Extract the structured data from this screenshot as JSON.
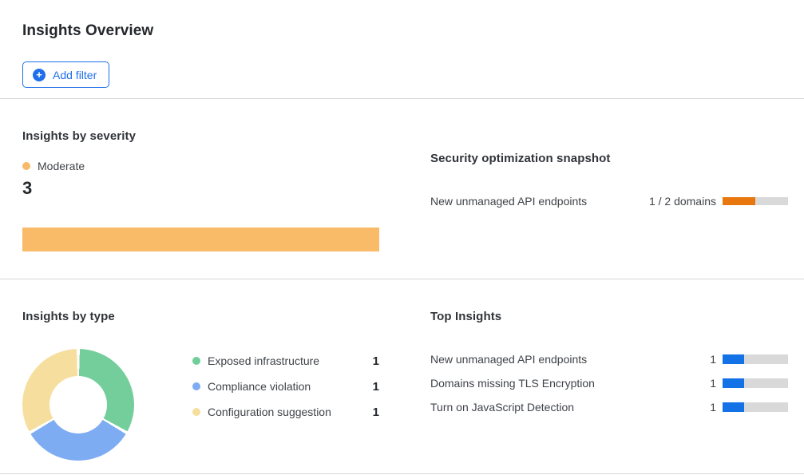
{
  "page": {
    "title": "Insights Overview"
  },
  "toolbar": {
    "add_filter_label": "Add filter",
    "plus_glyph": "+"
  },
  "colors": {
    "accent_blue": "#1f6feb",
    "severity_orange": "#FABB69",
    "snapshot_orange": "#E8770D",
    "insight_blue": "#1373E6",
    "track_gray": "#D9D9D9",
    "donut_green": "#74CE9B",
    "donut_blue": "#7DACF3",
    "donut_yellow": "#F6DF9E"
  },
  "severity": {
    "heading": "Insights by severity",
    "legend": {
      "label": "Moderate",
      "color": "#F6BA68"
    },
    "count": "3",
    "bar": {
      "value": 3,
      "max": 3,
      "color": "#FABB69"
    }
  },
  "snapshot": {
    "heading": "Security optimization snapshot",
    "rows": [
      {
        "label": "New unmanaged API endpoints",
        "value_label": "1 / 2 domains",
        "progress": {
          "value": 1,
          "max": 2,
          "color": "#E8770D"
        }
      }
    ]
  },
  "types": {
    "heading": "Insights by type",
    "legend": [
      {
        "label": "Exposed infrastructure",
        "count": "1",
        "color": "#6FCE9A"
      },
      {
        "label": "Compliance violation",
        "count": "1",
        "color": "#7DACF3"
      },
      {
        "label": "Configuration suggestion",
        "count": "1",
        "color": "#F6DF9E"
      }
    ]
  },
  "top_insights": {
    "heading": "Top Insights",
    "rows": [
      {
        "label": "New unmanaged API endpoints",
        "count": "1",
        "progress": {
          "value": 1,
          "max": 3,
          "color": "#1373E6"
        }
      },
      {
        "label": "Domains missing TLS Encryption",
        "count": "1",
        "progress": {
          "value": 1,
          "max": 3,
          "color": "#1373E6"
        }
      },
      {
        "label": "Turn on JavaScript Detection",
        "count": "1",
        "progress": {
          "value": 1,
          "max": 3,
          "color": "#1373E6"
        }
      }
    ]
  },
  "chart_data": [
    {
      "type": "bar",
      "title": "Insights by severity",
      "orientation": "horizontal",
      "categories": [
        "Moderate"
      ],
      "values": [
        3
      ],
      "colors": [
        "#FABB69"
      ],
      "legend_position": "top",
      "notes": "single full-width orange bar, total count 3 shown above"
    },
    {
      "type": "bar",
      "title": "Security optimization snapshot",
      "orientation": "horizontal-progress",
      "categories": [
        "New unmanaged API endpoints"
      ],
      "values": [
        1
      ],
      "max": 2,
      "value_labels": [
        "1 / 2 domains"
      ],
      "colors": [
        "#E8770D"
      ],
      "track_color": "#D9D9D9"
    },
    {
      "type": "pie",
      "subtype": "donut",
      "title": "Insights by type",
      "categories": [
        "Exposed infrastructure",
        "Compliance violation",
        "Configuration suggestion"
      ],
      "values": [
        1,
        1,
        1
      ],
      "colors": [
        "#74CE9B",
        "#7DACF3",
        "#F6DF9E"
      ],
      "legend_position": "right",
      "start_angle_deg": 0,
      "direction": "clockwise"
    },
    {
      "type": "bar",
      "title": "Top Insights",
      "orientation": "horizontal-progress",
      "categories": [
        "New unmanaged API endpoints",
        "Domains missing TLS Encryption",
        "Turn on JavaScript Detection"
      ],
      "values": [
        1,
        1,
        1
      ],
      "max": 3,
      "colors": [
        "#1373E6",
        "#1373E6",
        "#1373E6"
      ],
      "track_color": "#D9D9D9"
    }
  ]
}
